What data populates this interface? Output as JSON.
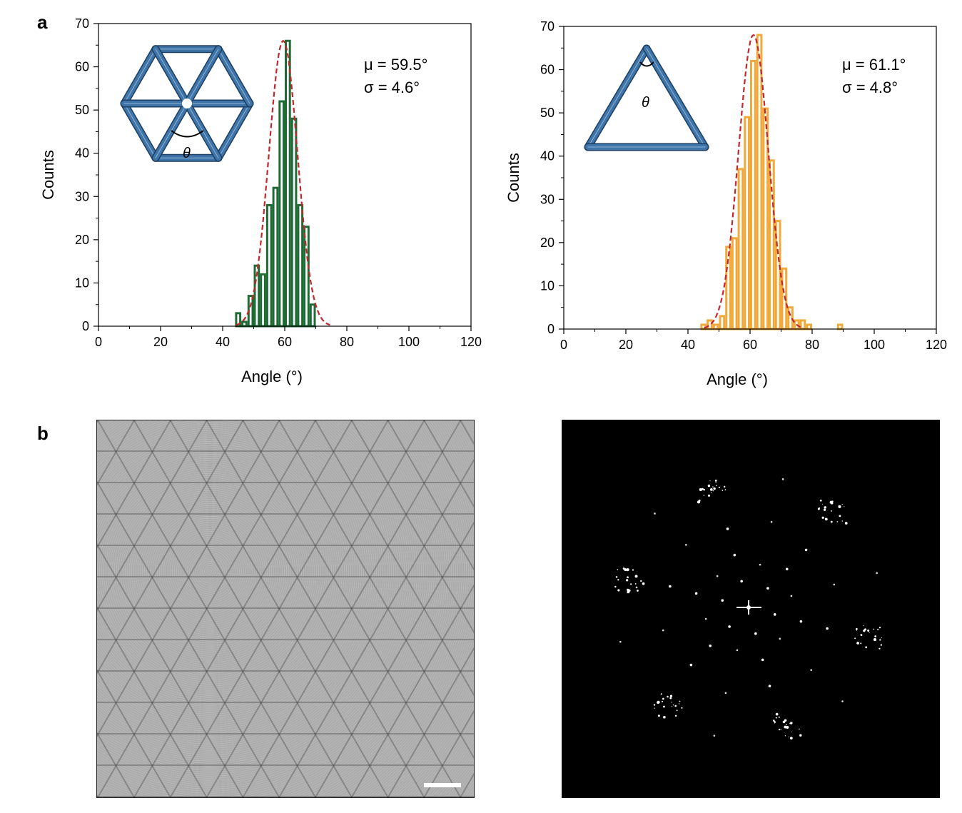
{
  "labels": {
    "a": "a",
    "b": "b"
  },
  "colors": {
    "green": "#1f6b35",
    "orange": "#f2a93b",
    "fit": "#c0282d",
    "origami": "#3e74a8"
  },
  "chart_data": [
    {
      "type": "bar",
      "subtype": "histogram",
      "title": "",
      "xlabel": "Angle (°)",
      "ylabel": "Counts",
      "xlim": [
        0,
        120
      ],
      "ylim": [
        0,
        70
      ],
      "xticks": [
        0,
        20,
        40,
        60,
        80,
        100,
        120
      ],
      "xtick_labels": [
        "0",
        "20",
        "40",
        "60",
        "80",
        "100",
        "120"
      ],
      "yticks": [
        0,
        10,
        20,
        30,
        40,
        50,
        60,
        70
      ],
      "ytick_labels": [
        "0",
        "10",
        "20",
        "30",
        "40",
        "50",
        "60",
        "70"
      ],
      "bin_width": 2,
      "bin_starts": [
        44,
        46,
        48,
        50,
        52,
        54,
        56,
        58,
        60,
        62,
        64,
        66,
        68
      ],
      "values": [
        3,
        1,
        7,
        14,
        12,
        28,
        32,
        52,
        66,
        48,
        28,
        23,
        5
      ],
      "fit": {
        "type": "gaussian",
        "mu": 59.5,
        "sigma": 4.6,
        "peak": 66
      },
      "annotations": [
        "μ = 59.5°",
        "σ = 4.6°"
      ],
      "inset_label": "θ",
      "inset": "hexagon"
    },
    {
      "type": "bar",
      "subtype": "histogram",
      "title": "",
      "xlabel": "Angle (°)",
      "ylabel": "Counts",
      "xlim": [
        0,
        120
      ],
      "ylim": [
        0,
        70
      ],
      "xticks": [
        0,
        20,
        40,
        60,
        80,
        100,
        120
      ],
      "xtick_labels": [
        "0",
        "20",
        "40",
        "60",
        "80",
        "100",
        "120"
      ],
      "yticks": [
        0,
        10,
        20,
        30,
        40,
        50,
        60,
        70
      ],
      "ytick_labels": [
        "0",
        "10",
        "20",
        "30",
        "40",
        "50",
        "60",
        "70"
      ],
      "bin_width": 2,
      "bin_starts": [
        44,
        46,
        48,
        50,
        52,
        54,
        56,
        58,
        60,
        62,
        64,
        66,
        68,
        70,
        72,
        74,
        76,
        78,
        80,
        82,
        84,
        86,
        88
      ],
      "values": [
        1,
        2,
        1,
        3,
        19,
        21,
        37,
        49,
        62,
        68,
        51,
        39,
        25,
        14,
        5,
        2,
        2,
        1,
        0,
        0,
        0,
        0,
        1
      ],
      "fit": {
        "type": "gaussian",
        "mu": 61.1,
        "sigma": 4.8,
        "peak": 68
      },
      "annotations": [
        "μ = 61.1°",
        "σ = 4.8°"
      ],
      "inset_label": "θ",
      "inset": "triangle"
    }
  ]
}
